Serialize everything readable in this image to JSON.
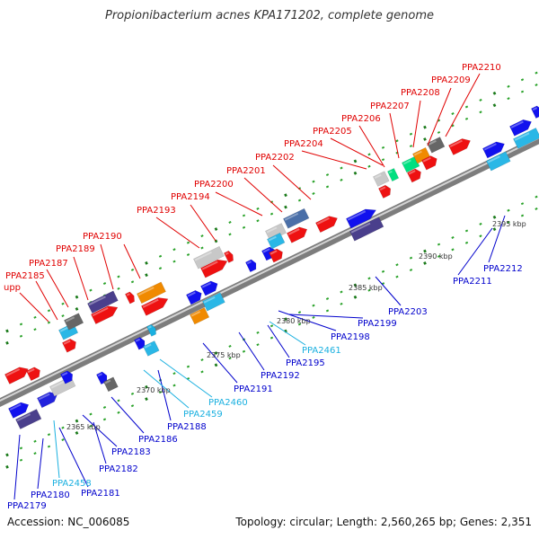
{
  "title": "Propionibacterium acnes KPA171202, complete genome",
  "accession": "Accession: NC_006085",
  "topology": "Topology: circular; Length: 2,560,265 bp; Genes: 2,351",
  "colors": {
    "upper_label": "#e00000",
    "lower_label": "#0000cc",
    "cyan_label": "#1ab0e0",
    "backbone": "#9a9a9a",
    "tick": "#1a8a1a"
  },
  "kbp_marks": [
    {
      "label": "2365 kbp"
    },
    {
      "label": "2370 kbp"
    },
    {
      "label": "2375 kbp"
    },
    {
      "label": "2380 kbp"
    },
    {
      "label": "2385 kbp"
    },
    {
      "label": "2390 kbp"
    },
    {
      "label": "2395 kbp"
    }
  ],
  "upper_labels": [
    {
      "text": "upp"
    },
    {
      "text": "PPA2185"
    },
    {
      "text": "PPA2187"
    },
    {
      "text": "PPA2189"
    },
    {
      "text": "PPA2190"
    },
    {
      "text": "PPA2193"
    },
    {
      "text": "PPA2194"
    },
    {
      "text": "PPA2200"
    },
    {
      "text": "PPA2201"
    },
    {
      "text": "PPA2202"
    },
    {
      "text": "PPA2204"
    },
    {
      "text": "PPA2205"
    },
    {
      "text": "PPA2206"
    },
    {
      "text": "PPA2207"
    },
    {
      "text": "PPA2208"
    },
    {
      "text": "PPA2209"
    },
    {
      "text": "PPA2210"
    }
  ],
  "lower_labels": [
    {
      "text": "PPA2179",
      "kind": "blue"
    },
    {
      "text": "PPA2180",
      "kind": "blue"
    },
    {
      "text": "PPA2458",
      "kind": "cyan"
    },
    {
      "text": "PPA2181",
      "kind": "blue"
    },
    {
      "text": "PPA2182",
      "kind": "blue"
    },
    {
      "text": "PPA2183",
      "kind": "blue"
    },
    {
      "text": "PPA2186",
      "kind": "blue"
    },
    {
      "text": "PPA2188",
      "kind": "blue"
    },
    {
      "text": "PPA2459",
      "kind": "cyan"
    },
    {
      "text": "PPA2460",
      "kind": "cyan"
    },
    {
      "text": "PPA2191",
      "kind": "blue"
    },
    {
      "text": "PPA2192",
      "kind": "blue"
    },
    {
      "text": "PPA2195",
      "kind": "blue"
    },
    {
      "text": "PPA2461",
      "kind": "cyan"
    },
    {
      "text": "PPA2198",
      "kind": "blue"
    },
    {
      "text": "PPA2199",
      "kind": "blue"
    },
    {
      "text": "PPA2203",
      "kind": "blue"
    },
    {
      "text": "PPA2211",
      "kind": "blue"
    },
    {
      "text": "PPA2212",
      "kind": "blue"
    }
  ]
}
